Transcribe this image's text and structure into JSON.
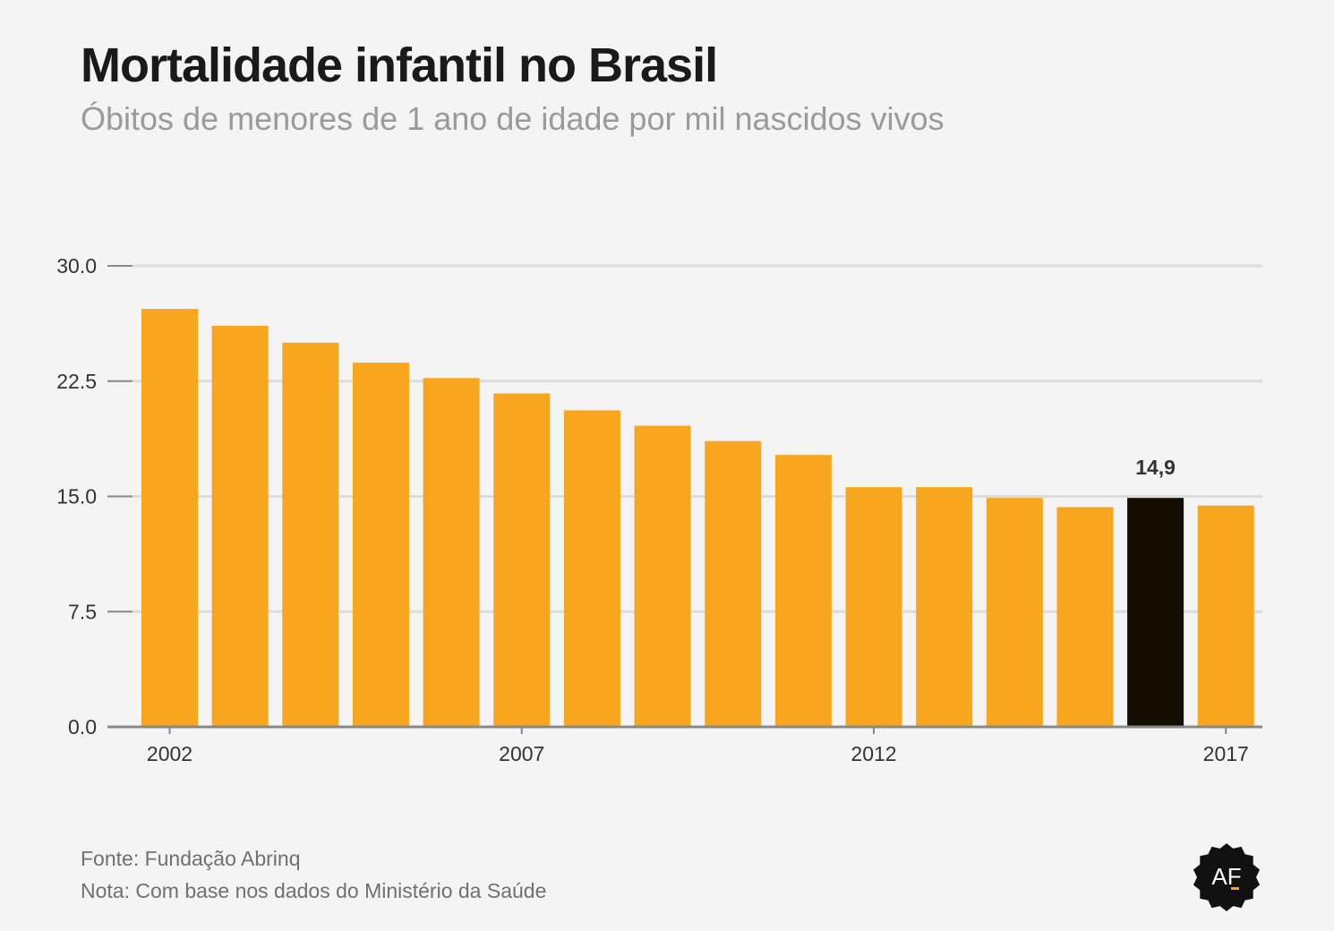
{
  "header": {
    "title": "Mortalidade infantil no Brasil",
    "subtitle": "Óbitos de menores de 1 ano de idade por mil nascidos vivos"
  },
  "chart_data": {
    "type": "bar",
    "categories": [
      "2002",
      "2003",
      "2004",
      "2005",
      "2006",
      "2007",
      "2008",
      "2009",
      "2010",
      "2011",
      "2012",
      "2013",
      "2014",
      "2015",
      "2016",
      "2017"
    ],
    "x_tick_labels": [
      "2002",
      "2007",
      "2012",
      "2017"
    ],
    "values": [
      27.2,
      26.1,
      25.0,
      23.7,
      22.7,
      21.7,
      20.6,
      19.6,
      18.6,
      17.7,
      15.6,
      15.6,
      14.9,
      14.3,
      14.9,
      14.4
    ],
    "ylim": [
      0,
      30
    ],
    "y_ticks": [
      "30.0",
      "22.5",
      "15.0",
      "7.5",
      "0.0"
    ],
    "y_tick_values": [
      30,
      22.5,
      15,
      7.5,
      0
    ],
    "highlight_index": 14,
    "highlight_label": "14,9",
    "grid": true,
    "colors": {
      "bar": "#f7a61e",
      "highlight": "#140d02",
      "grid": "#dcdcdc",
      "axis": "#888888"
    }
  },
  "footer": {
    "source": "Fonte: Fundação Abrinq",
    "note": "Nota: Com base nos dados do Ministério da Saúde",
    "logo_text": "AF"
  }
}
